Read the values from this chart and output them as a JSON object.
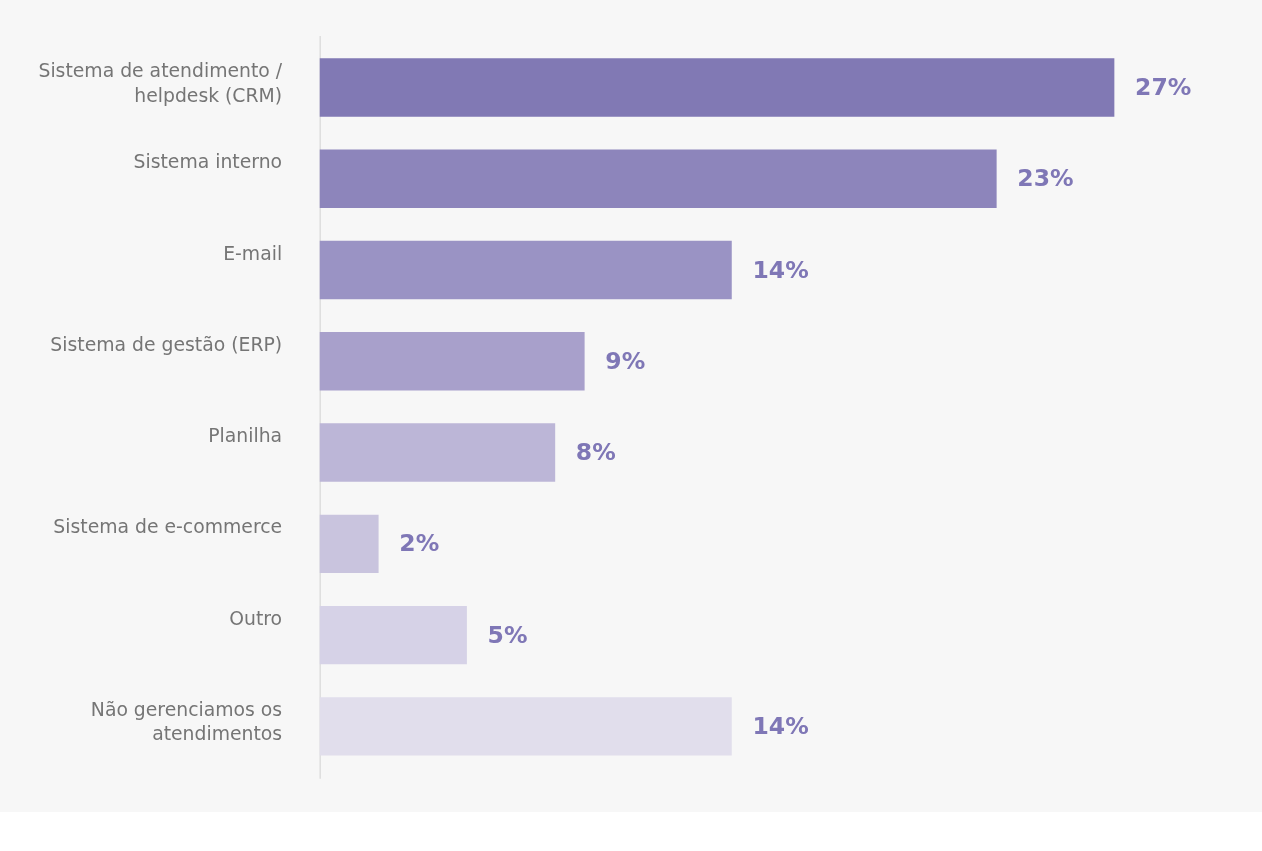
{
  "chart_data": {
    "type": "bar",
    "orientation": "horizontal",
    "categories": [
      "Sistema de atendimento /\nhelpdesk (CRM)",
      "Sistema interno",
      "E-mail",
      "Sistema de gestão (ERP)",
      "Planilha",
      "Sistema de e-commerce",
      "Outro",
      "Não gerenciamos os\natendimentos"
    ],
    "values": [
      27,
      23,
      14,
      9,
      8,
      2,
      5,
      14
    ],
    "colors": [
      "#8179b4",
      "#8d85bb",
      "#9a93c4",
      "#a8a0cb",
      "#bcb6d7",
      "#c9c4de",
      "#d6d2e7",
      "#e1deec"
    ],
    "value_labels": [
      "27%",
      "23%",
      "14%",
      "9%",
      "8%",
      "2%",
      "5%",
      "14%"
    ],
    "grid": false,
    "legend": false
  }
}
